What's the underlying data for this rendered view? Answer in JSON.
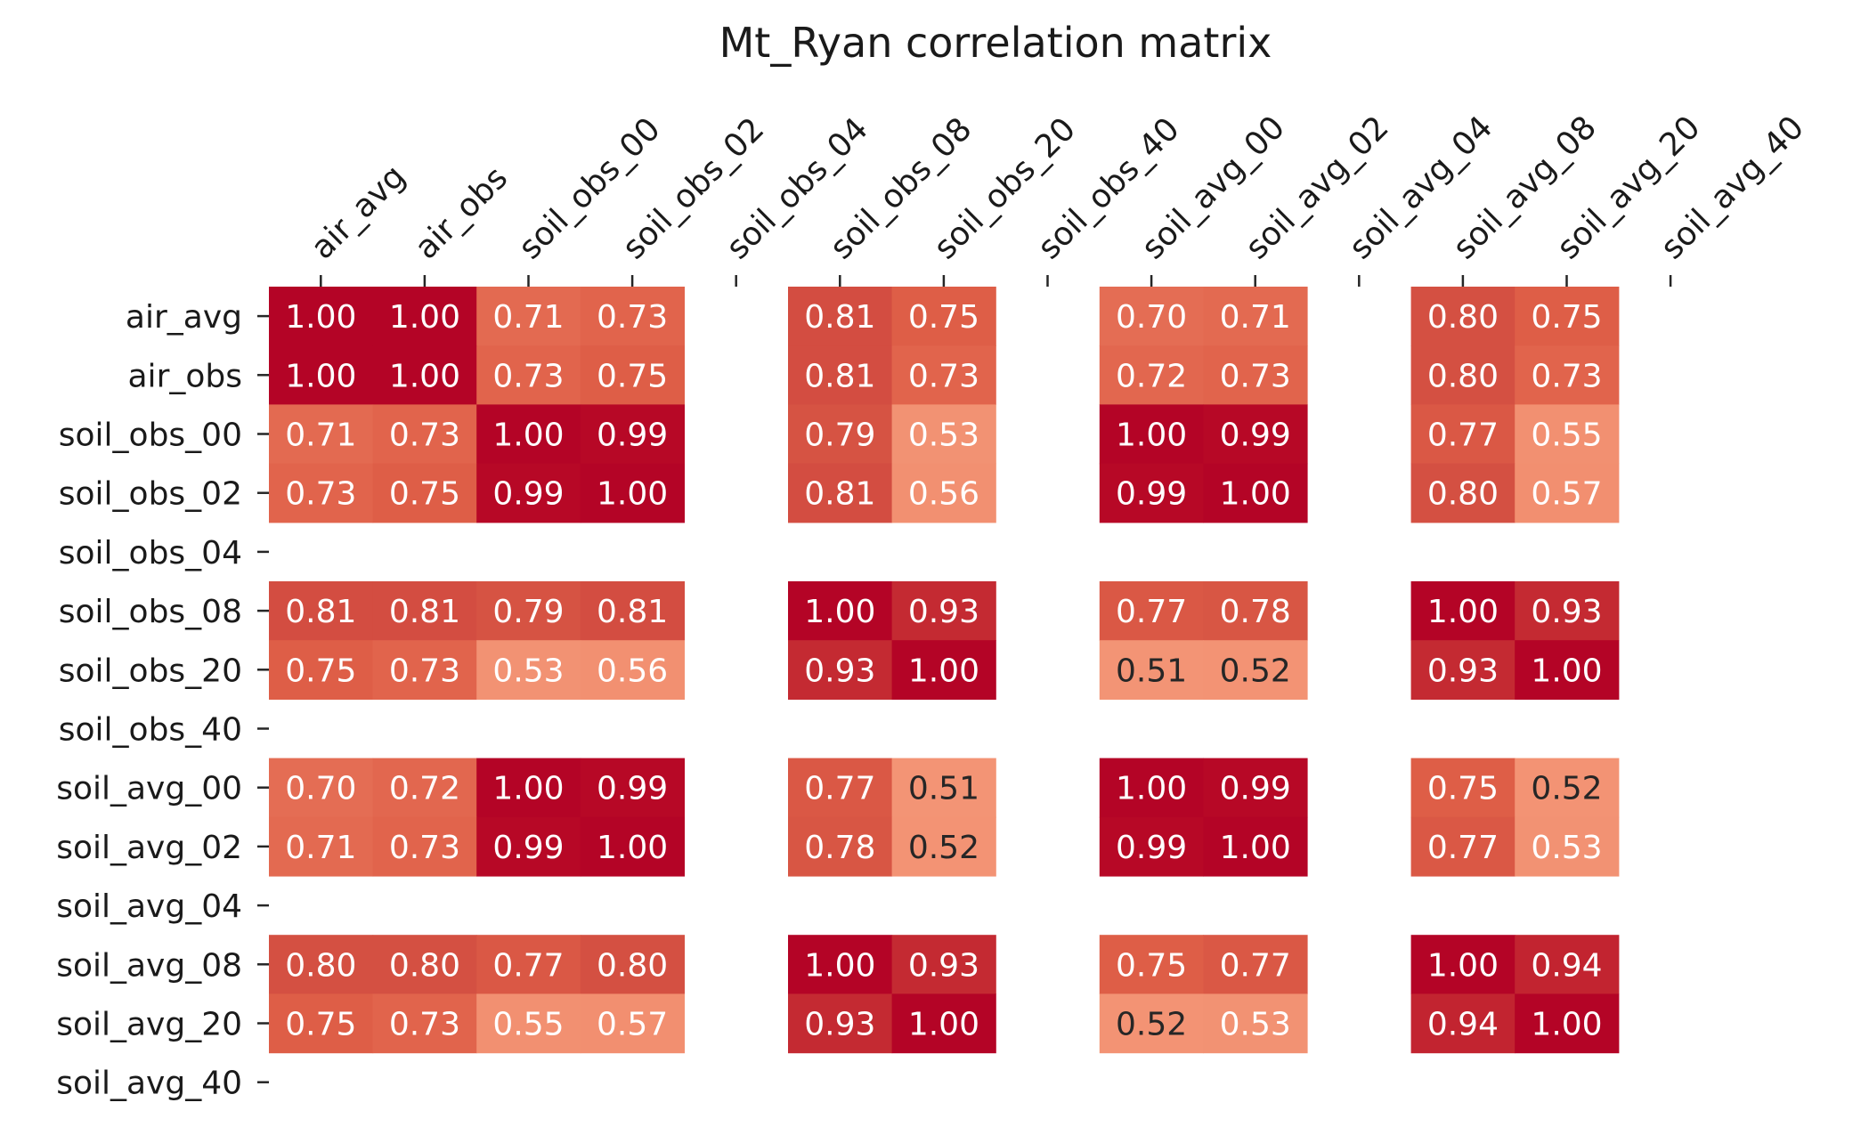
{
  "chart_data": {
    "type": "heatmap",
    "title": "Mt_Ryan correlation matrix",
    "colormap": "coolwarm",
    "value_range": [
      -1,
      1
    ],
    "missing_cells": "blank",
    "row_labels": [
      "air_avg",
      "air_obs",
      "soil_obs_00",
      "soil_obs_02",
      "soil_obs_04",
      "soil_obs_08",
      "soil_obs_20",
      "soil_obs_40",
      "soil_avg_00",
      "soil_avg_02",
      "soil_avg_04",
      "soil_avg_08",
      "soil_avg_20",
      "soil_avg_40"
    ],
    "col_labels": [
      "air_avg",
      "air_obs",
      "soil_obs_00",
      "soil_obs_02",
      "soil_obs_04",
      "soil_obs_08",
      "soil_obs_20",
      "soil_obs_40",
      "soil_avg_00",
      "soil_avg_02",
      "soil_avg_04",
      "soil_avg_08",
      "soil_avg_20",
      "soil_avg_40"
    ],
    "values": [
      [
        1.0,
        1.0,
        0.71,
        0.73,
        null,
        0.81,
        0.75,
        null,
        0.7,
        0.71,
        null,
        0.8,
        0.75,
        null
      ],
      [
        1.0,
        1.0,
        0.73,
        0.75,
        null,
        0.81,
        0.73,
        null,
        0.72,
        0.73,
        null,
        0.8,
        0.73,
        null
      ],
      [
        0.71,
        0.73,
        1.0,
        0.99,
        null,
        0.79,
        0.53,
        null,
        1.0,
        0.99,
        null,
        0.77,
        0.55,
        null
      ],
      [
        0.73,
        0.75,
        0.99,
        1.0,
        null,
        0.81,
        0.56,
        null,
        0.99,
        1.0,
        null,
        0.8,
        0.57,
        null
      ],
      [
        null,
        null,
        null,
        null,
        null,
        null,
        null,
        null,
        null,
        null,
        null,
        null,
        null,
        null
      ],
      [
        0.81,
        0.81,
        0.79,
        0.81,
        null,
        1.0,
        0.93,
        null,
        0.77,
        0.78,
        null,
        1.0,
        0.93,
        null
      ],
      [
        0.75,
        0.73,
        0.53,
        0.56,
        null,
        0.93,
        1.0,
        null,
        0.51,
        0.52,
        null,
        0.93,
        1.0,
        null
      ],
      [
        null,
        null,
        null,
        null,
        null,
        null,
        null,
        null,
        null,
        null,
        null,
        null,
        null,
        null
      ],
      [
        0.7,
        0.72,
        1.0,
        0.99,
        null,
        0.77,
        0.51,
        null,
        1.0,
        0.99,
        null,
        0.75,
        0.52,
        null
      ],
      [
        0.71,
        0.73,
        0.99,
        1.0,
        null,
        0.78,
        0.52,
        null,
        0.99,
        1.0,
        null,
        0.77,
        0.53,
        null
      ],
      [
        null,
        null,
        null,
        null,
        null,
        null,
        null,
        null,
        null,
        null,
        null,
        null,
        null,
        null
      ],
      [
        0.8,
        0.8,
        0.77,
        0.8,
        null,
        1.0,
        0.93,
        null,
        0.75,
        0.77,
        null,
        1.0,
        0.94,
        null
      ],
      [
        0.75,
        0.73,
        0.55,
        0.57,
        null,
        0.93,
        1.0,
        null,
        0.52,
        0.53,
        null,
        0.94,
        1.0,
        null
      ],
      [
        null,
        null,
        null,
        null,
        null,
        null,
        null,
        null,
        null,
        null,
        null,
        null,
        null,
        null
      ]
    ],
    "annotation_format": "0.00",
    "colors": {
      "dark_text": "#262626",
      "light_text": "#ffffff",
      "tick_color": "#262626"
    }
  }
}
